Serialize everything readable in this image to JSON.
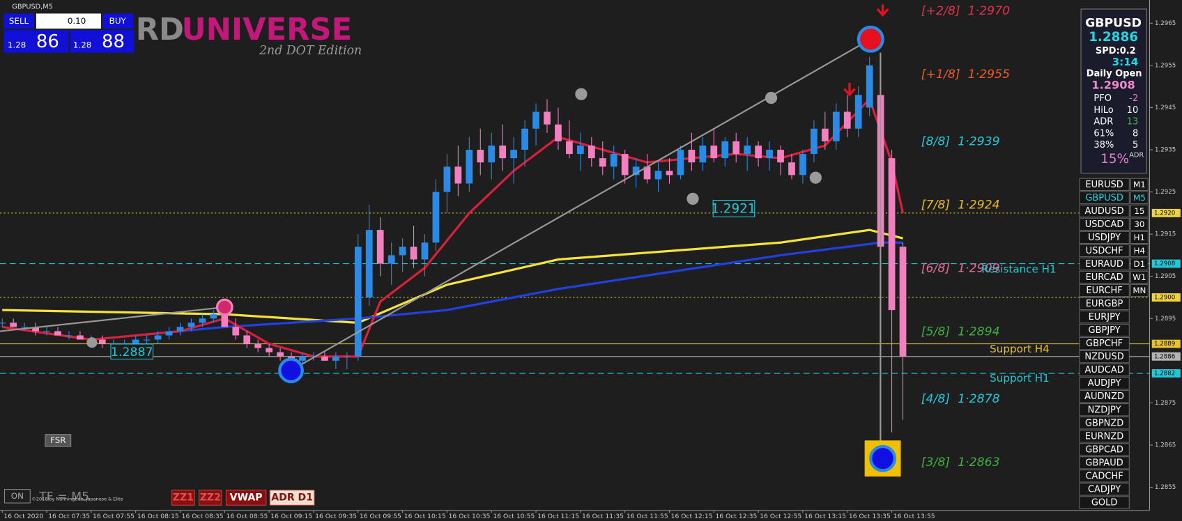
{
  "window": {
    "title": "GBPUSD,M5"
  },
  "trade_panel": {
    "sell": "SELL",
    "buy": "BUY",
    "lots": "0.10",
    "bid_prefix": "1.28",
    "bid_pips": "86",
    "ask_prefix": "1.28",
    "ask_pips": "88"
  },
  "logo": {
    "part1": "RD",
    "part2": "UNIVERSE",
    "edition": "2nd DOT Edition"
  },
  "chart": {
    "ylim": [
      1.28495,
      1.29705
    ],
    "yticks": [
      {
        "value": 1.2965,
        "label": "1.2965"
      },
      {
        "value": 1.2955,
        "label": "1.2955"
      },
      {
        "value": 1.2945,
        "label": "1.2945"
      },
      {
        "value": 1.2935,
        "label": "1.2935"
      },
      {
        "value": 1.2925,
        "label": "1.2925"
      },
      {
        "value": 1.2915,
        "label": "1.2915"
      },
      {
        "value": 1.2905,
        "label": "1.2905"
      },
      {
        "value": 1.2895,
        "label": "1.2895"
      },
      {
        "value": 1.2875,
        "label": "1.2875"
      },
      {
        "value": 1.2865,
        "label": "1.2865"
      },
      {
        "value": 1.2855,
        "label": "1.2855"
      }
    ],
    "xticks": [
      {
        "value": 0,
        "label": "16 Oct 2020"
      },
      {
        "value": 4,
        "label": "16 Oct 07:35"
      },
      {
        "value": 8,
        "label": "16 Oct 07:55"
      },
      {
        "value": 12,
        "label": "16 Oct 08:15"
      },
      {
        "value": 16,
        "label": "16 Oct 08:35"
      },
      {
        "value": 20,
        "label": "16 Oct 08:55"
      },
      {
        "value": 24,
        "label": "16 Oct 09:15"
      },
      {
        "value": 28,
        "label": "16 Oct 09:35"
      },
      {
        "value": 32,
        "label": "16 Oct 09:55"
      },
      {
        "value": 36,
        "label": "16 Oct 10:15"
      },
      {
        "value": 40,
        "label": "16 Oct 10:35"
      },
      {
        "value": 44,
        "label": "16 Oct 10:55"
      },
      {
        "value": 48,
        "label": "16 Oct 11:15"
      },
      {
        "value": 52,
        "label": "16 Oct 11:35"
      },
      {
        "value": 56,
        "label": "16 Oct 11:55"
      },
      {
        "value": 60,
        "label": "16 Oct 12:15"
      },
      {
        "value": 64,
        "label": "16 Oct 12:35"
      },
      {
        "value": 68,
        "label": "16 Oct 12:55"
      },
      {
        "value": 72,
        "label": "16 Oct 13:15"
      },
      {
        "value": 76,
        "label": "16 Oct 13:35"
      },
      {
        "value": 80,
        "label": "16 Oct 13:55"
      }
    ],
    "bull_color": "#2a8ae8",
    "bear_color": "#f27fbf",
    "candles": [
      [
        1.2894,
        1.2895,
        1.2893,
        1.2894
      ],
      [
        1.2894,
        1.2895,
        1.2893,
        1.2893
      ],
      [
        1.2893,
        1.2894,
        1.2892,
        1.2893
      ],
      [
        1.2893,
        1.2894,
        1.2891,
        1.2892
      ],
      [
        1.2892,
        1.2893,
        1.2891,
        1.2892
      ],
      [
        1.2892,
        1.2893,
        1.2891,
        1.2891
      ],
      [
        1.2891,
        1.2892,
        1.289,
        1.2891
      ],
      [
        1.2891,
        1.2892,
        1.289,
        1.289
      ],
      [
        1.289,
        1.2891,
        1.2889,
        1.289
      ],
      [
        1.289,
        1.2891,
        1.2888,
        1.2889
      ],
      [
        1.2889,
        1.289,
        1.2888,
        1.2889
      ],
      [
        1.2889,
        1.289,
        1.2888,
        1.2889
      ],
      [
        1.2889,
        1.2891,
        1.2888,
        1.289
      ],
      [
        1.289,
        1.2891,
        1.2889,
        1.289
      ],
      [
        1.289,
        1.2892,
        1.2889,
        1.2891
      ],
      [
        1.2891,
        1.2893,
        1.289,
        1.2892
      ],
      [
        1.2892,
        1.2894,
        1.2891,
        1.2893
      ],
      [
        1.2893,
        1.2895,
        1.2892,
        1.2894
      ],
      [
        1.2894,
        1.2896,
        1.2893,
        1.2895
      ],
      [
        1.2895,
        1.2897,
        1.2894,
        1.2896
      ],
      [
        1.2896,
        1.2897,
        1.2893,
        1.2893
      ],
      [
        1.2893,
        1.2895,
        1.289,
        1.2891
      ],
      [
        1.2891,
        1.2892,
        1.2888,
        1.2889
      ],
      [
        1.2889,
        1.289,
        1.2887,
        1.2888
      ],
      [
        1.2888,
        1.2889,
        1.2886,
        1.2887
      ],
      [
        1.2887,
        1.2888,
        1.2885,
        1.2886
      ],
      [
        1.2886,
        1.2887,
        1.2884,
        1.2885
      ],
      [
        1.2885,
        1.2887,
        1.2884,
        1.2886
      ],
      [
        1.2886,
        1.2887,
        1.2885,
        1.2886
      ],
      [
        1.2886,
        1.2887,
        1.2885,
        1.2885
      ],
      [
        1.2885,
        1.2887,
        1.2883,
        1.2886
      ],
      [
        1.2886,
        1.2887,
        1.2883,
        1.2886
      ],
      [
        1.2886,
        1.2915,
        1.2885,
        1.2912
      ],
      [
        1.29,
        1.2922,
        1.2898,
        1.2916
      ],
      [
        1.2916,
        1.2919,
        1.2905,
        1.2908
      ],
      [
        1.2908,
        1.2913,
        1.2903,
        1.291
      ],
      [
        1.291,
        1.2914,
        1.2906,
        1.2912
      ],
      [
        1.2912,
        1.2917,
        1.2907,
        1.2909
      ],
      [
        1.2909,
        1.2915,
        1.2905,
        1.2913
      ],
      [
        1.2913,
        1.2928,
        1.2911,
        1.2925
      ],
      [
        1.2925,
        1.2934,
        1.292,
        1.2931
      ],
      [
        1.2931,
        1.2936,
        1.2924,
        1.2927
      ],
      [
        1.2927,
        1.2938,
        1.2925,
        1.2935
      ],
      [
        1.2935,
        1.294,
        1.2929,
        1.2932
      ],
      [
        1.2932,
        1.2939,
        1.2928,
        1.2936
      ],
      [
        1.2936,
        1.2941,
        1.293,
        1.2933
      ],
      [
        1.2933,
        1.2938,
        1.2927,
        1.2935
      ],
      [
        1.2935,
        1.2942,
        1.2931,
        1.294
      ],
      [
        1.294,
        1.2946,
        1.2936,
        1.2944
      ],
      [
        1.2944,
        1.2947,
        1.2939,
        1.2941
      ],
      [
        1.2941,
        1.2945,
        1.2935,
        1.2937
      ],
      [
        1.2937,
        1.2942,
        1.2933,
        1.2934
      ],
      [
        1.2934,
        1.2939,
        1.293,
        1.2936
      ],
      [
        1.2936,
        1.2938,
        1.2931,
        1.2933
      ],
      [
        1.2933,
        1.2937,
        1.2929,
        1.2931
      ],
      [
        1.2931,
        1.2936,
        1.2928,
        1.2934
      ],
      [
        1.2934,
        1.2935,
        1.2927,
        1.2929
      ],
      [
        1.2929,
        1.2933,
        1.2926,
        1.2931
      ],
      [
        1.2931,
        1.2934,
        1.2927,
        1.2928
      ],
      [
        1.2928,
        1.2932,
        1.2925,
        1.293
      ],
      [
        1.293,
        1.2933,
        1.2927,
        1.2929
      ],
      [
        1.2929,
        1.2936,
        1.2928,
        1.2935
      ],
      [
        1.2935,
        1.2939,
        1.293,
        1.2932
      ],
      [
        1.2932,
        1.2938,
        1.293,
        1.2936
      ],
      [
        1.2936,
        1.294,
        1.2932,
        1.2933
      ],
      [
        1.2933,
        1.2938,
        1.2931,
        1.2937
      ],
      [
        1.2937,
        1.2939,
        1.2932,
        1.2934
      ],
      [
        1.2934,
        1.2938,
        1.293,
        1.2936
      ],
      [
        1.2936,
        1.2937,
        1.2931,
        1.2933
      ],
      [
        1.2933,
        1.2937,
        1.293,
        1.2935
      ],
      [
        1.2935,
        1.2936,
        1.2929,
        1.2932
      ],
      [
        1.2932,
        1.2934,
        1.2928,
        1.2929
      ],
      [
        1.2929,
        1.2935,
        1.2927,
        1.2934
      ],
      [
        1.2934,
        1.2942,
        1.2932,
        1.294
      ],
      [
        1.294,
        1.2944,
        1.2935,
        1.2937
      ],
      [
        1.2937,
        1.2946,
        1.2935,
        1.2944
      ],
      [
        1.2944,
        1.2948,
        1.2938,
        1.294
      ],
      [
        1.294,
        1.295,
        1.2938,
        1.2948
      ],
      [
        1.2945,
        1.2957,
        1.2943,
        1.2955
      ],
      [
        1.2948,
        1.295,
        1.2864,
        1.2912
      ],
      [
        1.2933,
        1.2935,
        1.2868,
        1.2897
      ],
      [
        1.2912,
        1.2913,
        1.2871,
        1.2886
      ]
    ],
    "lines": [
      {
        "color": "#f5e23a",
        "x": [
          0,
          20,
          32,
          40,
          50,
          60,
          70,
          78,
          81
        ],
        "values": [
          1.2897,
          1.2896,
          1.2894,
          1.2903,
          1.2909,
          1.2911,
          1.2913,
          1.2916,
          1.2914
        ]
      },
      {
        "color": "#2040e0",
        "x": [
          12,
          20,
          32,
          40,
          50,
          60,
          70,
          79,
          81
        ],
        "values": [
          1.2891,
          1.2893,
          1.2895,
          1.2897,
          1.2902,
          1.2906,
          1.291,
          1.2913,
          1.2913
        ]
      },
      {
        "color": "#d8203c",
        "x": [
          0,
          8,
          16,
          20,
          24,
          28,
          32,
          34,
          38,
          42,
          46,
          50,
          54,
          58,
          62,
          66,
          70,
          74,
          78,
          80,
          81
        ],
        "values": [
          1.2893,
          1.289,
          1.2892,
          1.2895,
          1.2889,
          1.2886,
          1.2886,
          1.2899,
          1.2907,
          1.292,
          1.293,
          1.2938,
          1.2935,
          1.2932,
          1.2933,
          1.2934,
          1.2933,
          1.2936,
          1.2947,
          1.2932,
          1.292
        ]
      }
    ],
    "price_levels": [
      {
        "value": 1.292,
        "label": "1.2920",
        "color": "#f0d23c",
        "style": "dotted"
      },
      {
        "value": 1.2908,
        "label": "1.2908",
        "color": "#22c8d8",
        "style": "dashed"
      },
      {
        "value": 1.29,
        "label": "1.2900",
        "color": "#f0d23c",
        "style": "dotted"
      },
      {
        "value": 1.2889,
        "label": "1.2889",
        "color": "#e6c22e",
        "style": "solid"
      },
      {
        "value": 1.2886,
        "label": "1.2886",
        "color": "#b4b4b4",
        "style": "solid"
      },
      {
        "value": 1.2882,
        "label": "1.2882",
        "color": "#22c8d8",
        "style": "dashed"
      }
    ],
    "murrey": [
      {
        "value": 1.297,
        "label": "[+2/8]  1·2970",
        "color": "#e0304a"
      },
      {
        "value": 1.2955,
        "label": "[+1/8]  1·2955",
        "color": "#f05a28"
      },
      {
        "value": 1.2939,
        "label": "[8/8]  1·2939",
        "color": "#22c8d8"
      },
      {
        "value": 1.2924,
        "label": "[7/8]  1·2924",
        "color": "#e8b923"
      },
      {
        "value": 1.2909,
        "label": "[6/8]  1·2909",
        "color": "#e26b9c"
      },
      {
        "value": 1.2894,
        "label": "[5/8]  1·2894",
        "color": "#3cb043"
      },
      {
        "value": 1.2878,
        "label": "[4/8]  1·2878",
        "color": "#22c8d8"
      },
      {
        "value": 1.2863,
        "label": "[3/8]  1·2863",
        "color": "#3cb043"
      }
    ]
  },
  "annotations": {
    "resistance_h1": "Resistance H1",
    "support_h4": "Support H4",
    "support_h1": "Support H1",
    "box_high": "1.2921",
    "box_low": "1.2887"
  },
  "info_panel": {
    "symbol": "GBPUSD",
    "price": "1.2886",
    "spread": "SPD:0.2",
    "timer": "3:14",
    "daily_open_label": "Daily Open",
    "daily_open": "1.2908",
    "rows": [
      [
        "PFO",
        "-2"
      ],
      [
        "HiLo",
        "10"
      ],
      [
        "ADR",
        "13"
      ],
      [
        "61%",
        "8"
      ],
      [
        "38%",
        "5"
      ]
    ],
    "adr_pct": "15%",
    "adr_sup": "ADR"
  },
  "symbols": [
    "EURUSD",
    "GBPUSD",
    "AUDUSD",
    "USDCAD",
    "USDJPY",
    "USDCHF",
    "EURAUD",
    "EURCAD",
    "EURCHF",
    "EURGBP",
    "EURJPY",
    "GBPJPY",
    "GBPCHF",
    "NZDUSD",
    "AUDCAD",
    "AUDJPY",
    "AUDNZD",
    "NZDJPY",
    "GBPNZD",
    "EURNZD",
    "GBPCAD",
    "GBPAUD",
    "CADCHF",
    "CADJPY",
    "GOLD"
  ],
  "timeframes": [
    "M1",
    "M5",
    "15",
    "30",
    "H1",
    "H4",
    "D1",
    "W1",
    "MN"
  ],
  "buttons": [
    "ZZ1",
    "ZZ2",
    "VWAP",
    "ADR D1"
  ],
  "fsr": "FSR",
  "toggle": "ON",
  "tf_label": "TF = M5",
  "copyright": "©2018 by Nanningbob, Japanese & Elite"
}
